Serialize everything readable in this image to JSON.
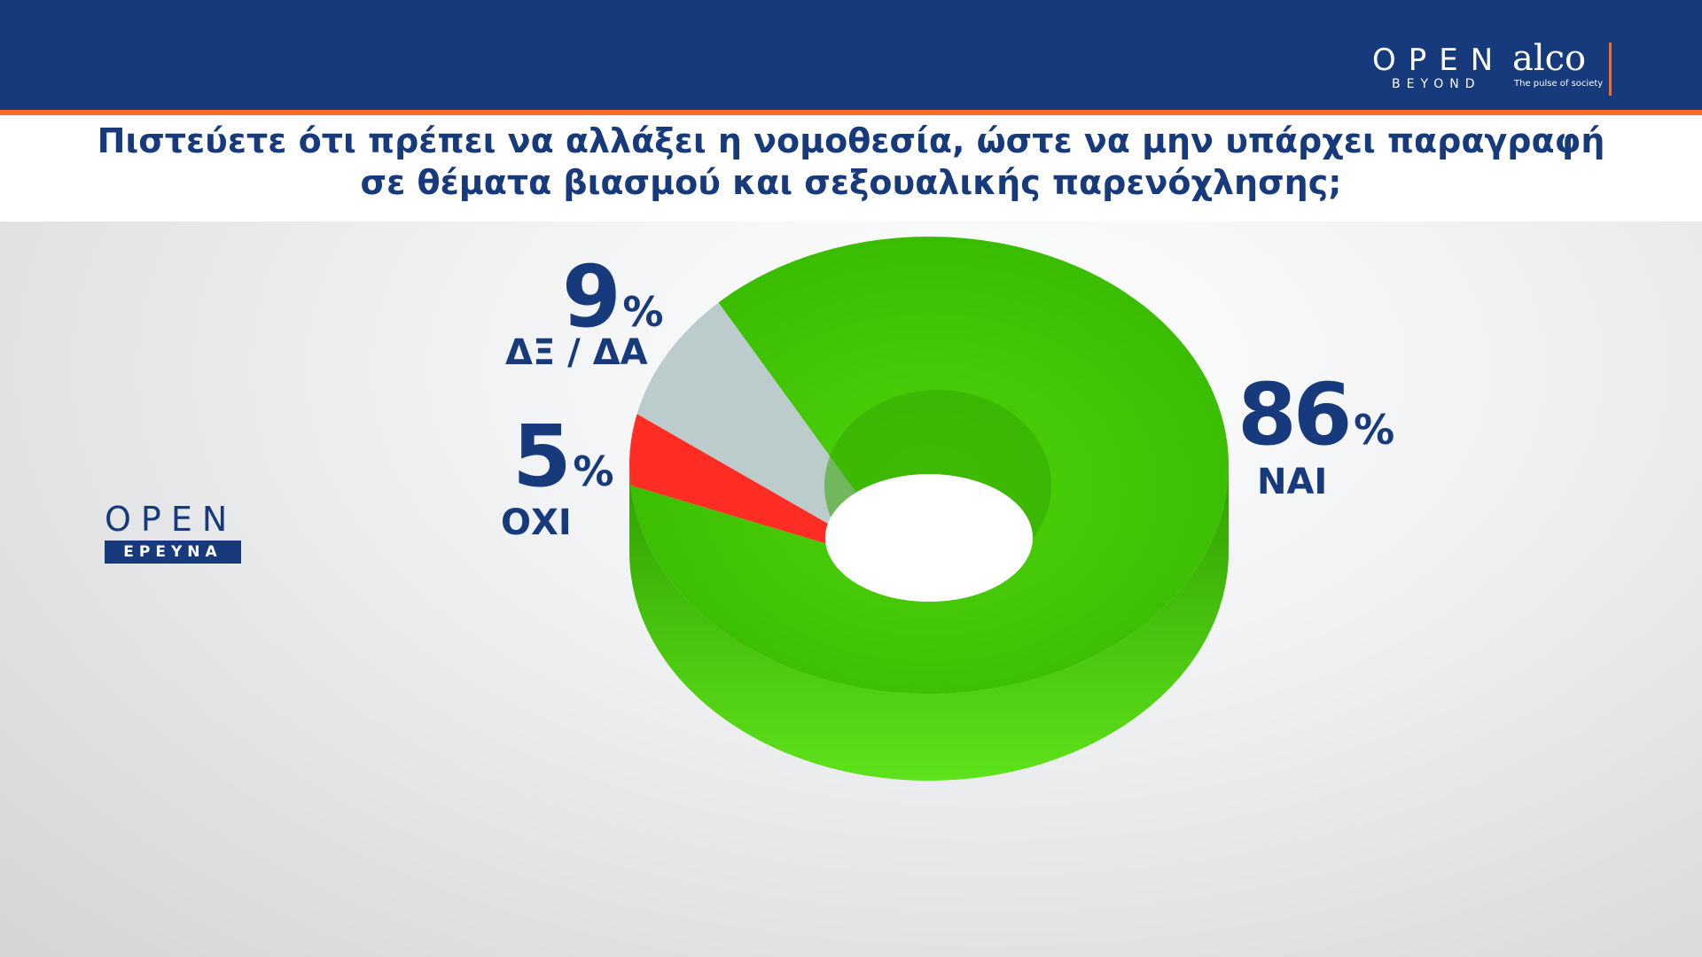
{
  "title_lines": [
    "Πιστεύετε ότι πρέπει να αλλάξει η νομοθεσία, ώστε να μην υπάρχει παραγραφή",
    "σε θέματα βιασμού και σεξουαλικής παρενόχλησης;"
  ],
  "brands": {
    "open_beyond": {
      "word": "OPEN",
      "sub": "BEYOND"
    },
    "alco": {
      "word": "alco",
      "sub": "The pulse of society"
    },
    "open_ereyna": {
      "word": "OPEN",
      "sub": "ΕΡΕΥΝΑ"
    }
  },
  "colors": {
    "navy": "#173a7d",
    "orange": "#f26c2a",
    "nai": "#45c803",
    "oxi": "#ff2d23",
    "dxda": "#bccbcc"
  },
  "chart_data": {
    "type": "pie",
    "style": "3d-donut",
    "title": "",
    "slices": [
      {
        "label": "ΝΑΙ",
        "value": 86,
        "display": "86",
        "unit": "%"
      },
      {
        "label": "ΟΧΙ",
        "value": 5,
        "display": "5",
        "unit": "%"
      },
      {
        "label": "ΔΞ / ΔΑ",
        "value": 9,
        "display": "9",
        "unit": "%"
      }
    ]
  }
}
